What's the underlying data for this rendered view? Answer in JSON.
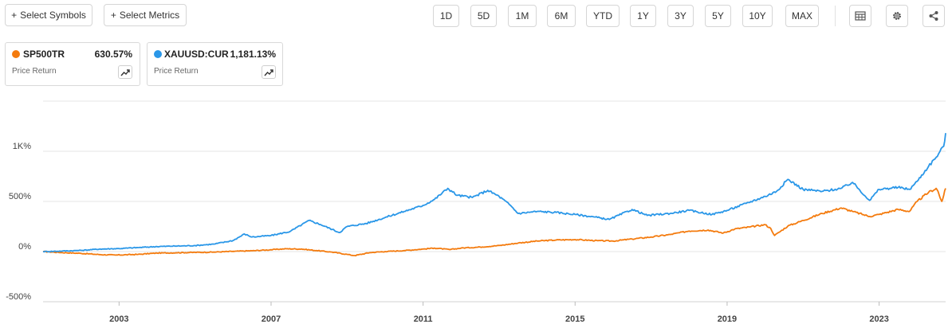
{
  "toolbar": {
    "select_symbols": "Select Symbols",
    "select_metrics": "Select Metrics",
    "ranges": [
      "1D",
      "5D",
      "1M",
      "6M",
      "YTD",
      "1Y",
      "3Y",
      "5Y",
      "10Y",
      "MAX"
    ],
    "icons": [
      "table-icon",
      "gear-icon",
      "share-icon"
    ]
  },
  "legend": [
    {
      "symbol": "SP500TR",
      "value": "630.57%",
      "sub": "Price Return",
      "color": "#f47b0e"
    },
    {
      "symbol": "XAUUSD:CUR",
      "value": "1,181.13%",
      "sub": "Price Return",
      "color": "#2a97e8"
    }
  ],
  "chart_data": {
    "type": "line",
    "x_ticks": [
      "2003",
      "2007",
      "2011",
      "2015",
      "2019",
      "2023"
    ],
    "y_ticks": [
      "1K%",
      "500%",
      "0%",
      "-500%"
    ],
    "y_tick_values": [
      1000,
      500,
      0,
      -500
    ],
    "ylim": [
      -500,
      1500
    ],
    "xlim": [
      2001.0,
      2024.75
    ],
    "grid": true,
    "series": [
      {
        "name": "SP500TR",
        "color": "#f47b0e",
        "points": [
          [
            2001.0,
            0
          ],
          [
            2001.5,
            -10
          ],
          [
            2002.0,
            -18
          ],
          [
            2002.5,
            -30
          ],
          [
            2002.9,
            -35
          ],
          [
            2003.5,
            -28
          ],
          [
            2004.0,
            -15
          ],
          [
            2004.5,
            -12
          ],
          [
            2005.0,
            -8
          ],
          [
            2005.5,
            -5
          ],
          [
            2006.0,
            2
          ],
          [
            2006.5,
            8
          ],
          [
            2007.0,
            18
          ],
          [
            2007.4,
            28
          ],
          [
            2007.8,
            25
          ],
          [
            2008.2,
            10
          ],
          [
            2008.6,
            -5
          ],
          [
            2009.0,
            -28
          ],
          [
            2009.2,
            -40
          ],
          [
            2009.6,
            -10
          ],
          [
            2010.0,
            0
          ],
          [
            2010.5,
            10
          ],
          [
            2011.0,
            25
          ],
          [
            2011.3,
            35
          ],
          [
            2011.7,
            20
          ],
          [
            2012.0,
            35
          ],
          [
            2012.5,
            45
          ],
          [
            2013.0,
            60
          ],
          [
            2013.5,
            85
          ],
          [
            2014.0,
            105
          ],
          [
            2014.5,
            115
          ],
          [
            2015.0,
            120
          ],
          [
            2015.6,
            108
          ],
          [
            2016.0,
            105
          ],
          [
            2016.5,
            125
          ],
          [
            2017.0,
            145
          ],
          [
            2017.5,
            170
          ],
          [
            2018.0,
            205
          ],
          [
            2018.5,
            215
          ],
          [
            2018.9,
            185
          ],
          [
            2019.2,
            225
          ],
          [
            2019.6,
            245
          ],
          [
            2020.0,
            268
          ],
          [
            2020.15,
            230
          ],
          [
            2020.25,
            160
          ],
          [
            2020.6,
            255
          ],
          [
            2021.0,
            310
          ],
          [
            2021.5,
            380
          ],
          [
            2022.0,
            435
          ],
          [
            2022.3,
            400
          ],
          [
            2022.75,
            350
          ],
          [
            2023.0,
            370
          ],
          [
            2023.5,
            420
          ],
          [
            2023.8,
            400
          ],
          [
            2024.0,
            500
          ],
          [
            2024.3,
            590
          ],
          [
            2024.5,
            630
          ],
          [
            2024.55,
            600
          ],
          [
            2024.6,
            540
          ],
          [
            2024.65,
            500
          ],
          [
            2024.7,
            560
          ],
          [
            2024.75,
            630
          ]
        ]
      },
      {
        "name": "XAUUSD:CUR",
        "color": "#2a97e8",
        "points": [
          [
            2001.0,
            0
          ],
          [
            2001.5,
            5
          ],
          [
            2002.0,
            12
          ],
          [
            2002.5,
            25
          ],
          [
            2003.0,
            30
          ],
          [
            2003.5,
            40
          ],
          [
            2004.0,
            50
          ],
          [
            2004.5,
            55
          ],
          [
            2005.0,
            60
          ],
          [
            2005.5,
            75
          ],
          [
            2006.0,
            110
          ],
          [
            2006.3,
            175
          ],
          [
            2006.5,
            145
          ],
          [
            2007.0,
            160
          ],
          [
            2007.5,
            200
          ],
          [
            2008.0,
            310
          ],
          [
            2008.3,
            270
          ],
          [
            2008.8,
            190
          ],
          [
            2009.0,
            250
          ],
          [
            2009.5,
            280
          ],
          [
            2010.0,
            340
          ],
          [
            2010.5,
            400
          ],
          [
            2011.0,
            460
          ],
          [
            2011.3,
            520
          ],
          [
            2011.65,
            630
          ],
          [
            2011.9,
            560
          ],
          [
            2012.3,
            540
          ],
          [
            2012.7,
            610
          ],
          [
            2013.0,
            550
          ],
          [
            2013.3,
            460
          ],
          [
            2013.5,
            380
          ],
          [
            2014.0,
            400
          ],
          [
            2014.5,
            390
          ],
          [
            2015.0,
            370
          ],
          [
            2015.5,
            345
          ],
          [
            2015.9,
            320
          ],
          [
            2016.5,
            420
          ],
          [
            2016.9,
            360
          ],
          [
            2017.5,
            380
          ],
          [
            2018.0,
            410
          ],
          [
            2018.6,
            370
          ],
          [
            2019.0,
            410
          ],
          [
            2019.5,
            480
          ],
          [
            2020.0,
            550
          ],
          [
            2020.3,
            600
          ],
          [
            2020.6,
            720
          ],
          [
            2021.0,
            620
          ],
          [
            2021.5,
            600
          ],
          [
            2022.0,
            630
          ],
          [
            2022.3,
            690
          ],
          [
            2022.75,
            510
          ],
          [
            2023.0,
            620
          ],
          [
            2023.5,
            640
          ],
          [
            2023.8,
            620
          ],
          [
            2024.0,
            700
          ],
          [
            2024.3,
            850
          ],
          [
            2024.5,
            940
          ],
          [
            2024.7,
            1050
          ],
          [
            2024.75,
            1181
          ]
        ]
      }
    ]
  }
}
